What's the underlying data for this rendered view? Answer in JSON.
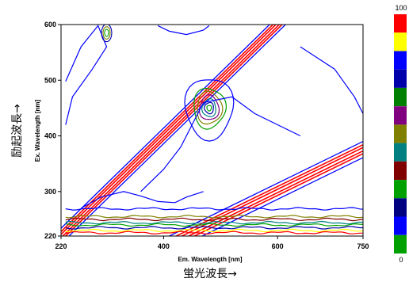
{
  "chart_data": {
    "type": "contour",
    "title": "",
    "xlabel": "Em. Wavelength [nm]",
    "ylabel": "Ex. Wavelength [nm]",
    "xlabel_jp": "蛍光波長→",
    "ylabel_jp": "励起波長→",
    "xlim": [
      220,
      750
    ],
    "ylim": [
      220,
      600
    ],
    "xticks": [
      220,
      400,
      600,
      750
    ],
    "yticks": [
      220,
      300,
      400,
      500,
      600
    ],
    "colorbar": {
      "range": [
        0,
        100
      ],
      "min_label": "0",
      "max_label": "100",
      "colors_top_to_bottom": [
        "#ff0000",
        "#ffff00",
        "#0000ff",
        "#0000aa",
        "#008000",
        "#800080",
        "#808000",
        "#008080",
        "#800000",
        "#00a000",
        "#000080",
        "#0000ff",
        "#00a000"
      ]
    },
    "features": [
      {
        "name": "first-order Rayleigh scatter",
        "relation": "em = ex"
      },
      {
        "name": "second-order Rayleigh scatter",
        "relation": "em = 2 * ex"
      },
      {
        "name": "fluorescence peak",
        "ex": 450,
        "em": 480
      }
    ]
  }
}
